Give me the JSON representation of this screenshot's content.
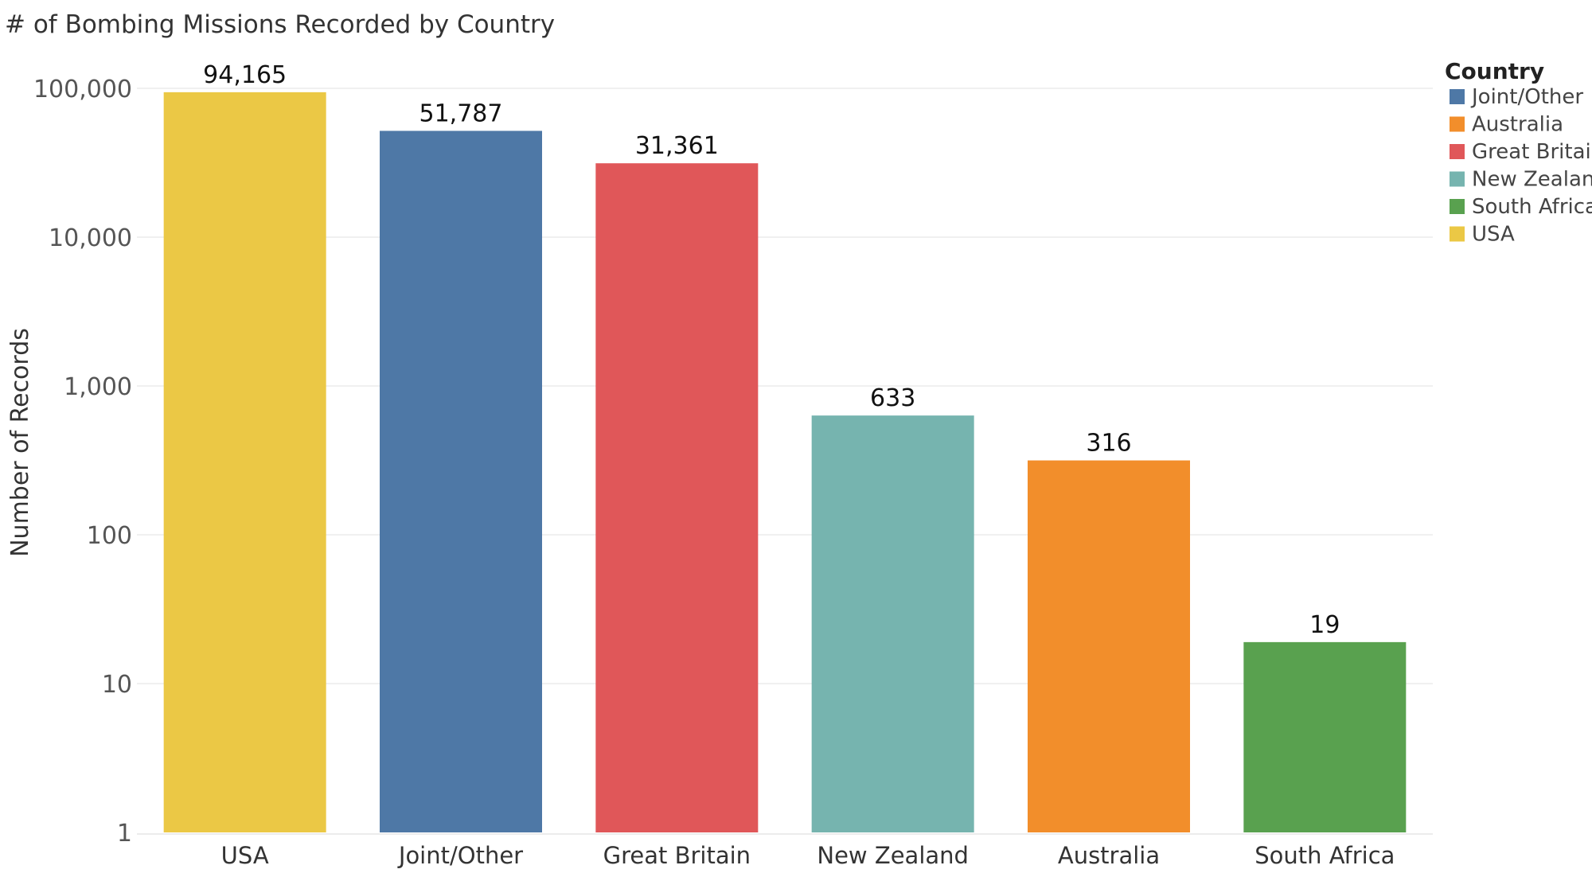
{
  "chart_data": {
    "type": "bar",
    "title": "# of Bombing Missions Recorded by Country",
    "ylabel": "Number of Records",
    "xlabel": "",
    "yscale": "log",
    "ylim": [
      1,
      100000
    ],
    "yticks": [
      1,
      10,
      100,
      1000,
      10000,
      100000
    ],
    "ytick_labels": [
      "1",
      "10",
      "100",
      "1,000",
      "10,000",
      "100,000"
    ],
    "grid": true,
    "legend_title": "Country",
    "legend_position": "right",
    "categories": [
      "USA",
      "Joint/Other",
      "Great Britain",
      "New Zealand",
      "Australia",
      "South Africa"
    ],
    "values": [
      94165,
      51787,
      31361,
      633,
      316,
      19
    ],
    "value_labels": [
      "94,165",
      "51,787",
      "31,361",
      "633",
      "316",
      "19"
    ],
    "colors": [
      "#EBC845",
      "#4E78A6",
      "#E05759",
      "#76B4AF",
      "#F28E2B",
      "#59A14F"
    ],
    "legend": [
      {
        "label": "Joint/Other",
        "color": "#4E78A6"
      },
      {
        "label": "Australia",
        "color": "#F28E2B"
      },
      {
        "label": "Great Britain",
        "color": "#E05759"
      },
      {
        "label": "New Zealand",
        "color": "#76B4AF"
      },
      {
        "label": "South Africa",
        "color": "#59A14F"
      },
      {
        "label": "USA",
        "color": "#EBC845"
      }
    ]
  }
}
